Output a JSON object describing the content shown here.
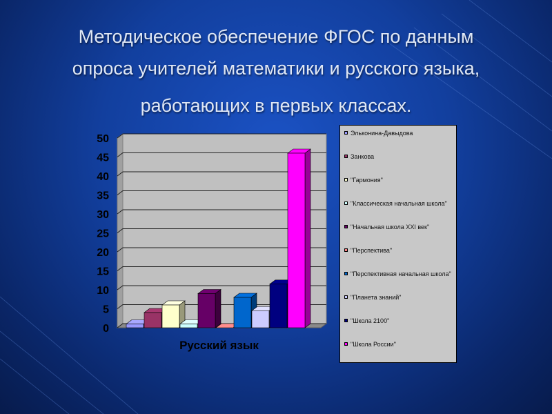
{
  "title": {
    "line1": "Методическое обеспечение ФГОС по данным",
    "line2": "опроса учителей математики и русского языка,",
    "line3": "работающих в первых классах."
  },
  "chart_data": {
    "type": "bar",
    "categories": [
      "Русский язык"
    ],
    "ylim": [
      0,
      50
    ],
    "yticks": [
      "0",
      "5",
      "10",
      "15",
      "20",
      "25",
      "30",
      "35",
      "40",
      "45",
      "50"
    ],
    "grid": true,
    "legend_placement": "right",
    "series": [
      {
        "name": "Эльконина-Давыдова",
        "values": [
          1
        ],
        "color": "#9999ff"
      },
      {
        "name": "Занкова",
        "values": [
          4
        ],
        "color": "#993366"
      },
      {
        "name": "\"Гармония\"",
        "values": [
          6
        ],
        "color": "#ffffcc"
      },
      {
        "name": "\"Классическая начальная школа\"",
        "values": [
          1
        ],
        "color": "#ccffff"
      },
      {
        "name": "\"Начальная школа XXI век\"",
        "values": [
          9
        ],
        "color": "#660066"
      },
      {
        "name": "\"Перспектива\"",
        "values": [
          0
        ],
        "color": "#ff8080"
      },
      {
        "name": "\"Перспективная начальная школа\"",
        "values": [
          8
        ],
        "color": "#0066cc"
      },
      {
        "name": "\"Планета знаний\"",
        "values": [
          4.5
        ],
        "color": "#ccccff"
      },
      {
        "name": "\"Школа 2100\"",
        "values": [
          11.5
        ],
        "color": "#000080"
      },
      {
        "name": "\"Школа России\"",
        "values": [
          46
        ],
        "color": "#ff00ff"
      }
    ]
  }
}
